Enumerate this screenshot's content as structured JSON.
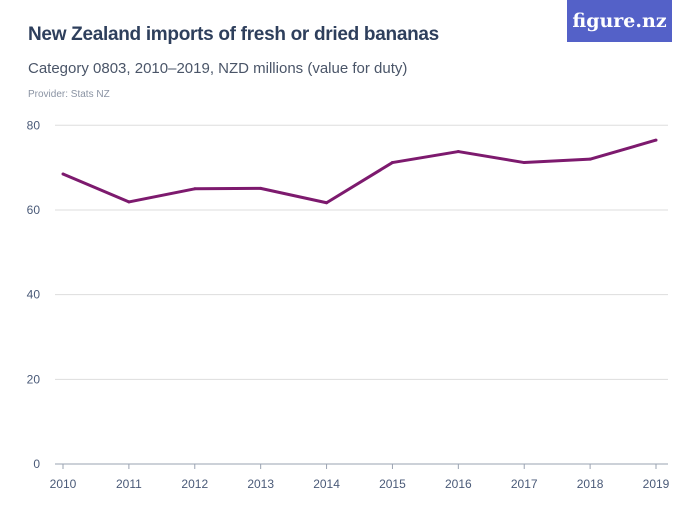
{
  "header": {
    "title": "New Zealand imports of fresh or dried bananas",
    "subtitle": "Category 0803, 2010–2019, NZD millions (value for duty)",
    "provider": "Provider: Stats NZ",
    "logo": "figure.nz"
  },
  "colors": {
    "line": "#7d1a6e",
    "logo_bg": "#5461c8",
    "grid": "#dddddd"
  },
  "chart_data": {
    "type": "line",
    "title": "New Zealand imports of fresh or dried bananas",
    "subtitle": "Category 0803, 2010–2019, NZD millions (value for duty)",
    "xlabel": "",
    "ylabel": "",
    "x": [
      "2010",
      "2011",
      "2012",
      "2013",
      "2014",
      "2015",
      "2016",
      "2017",
      "2018",
      "2019"
    ],
    "series": [
      {
        "values": [
          68.5,
          61.9,
          65.0,
          65.1,
          61.7,
          71.2,
          73.8,
          71.2,
          72.0,
          76.5
        ]
      }
    ],
    "ylim": [
      0,
      80
    ],
    "yticks": [
      0,
      20,
      40,
      60,
      80
    ],
    "grid": true,
    "legend": "none"
  }
}
